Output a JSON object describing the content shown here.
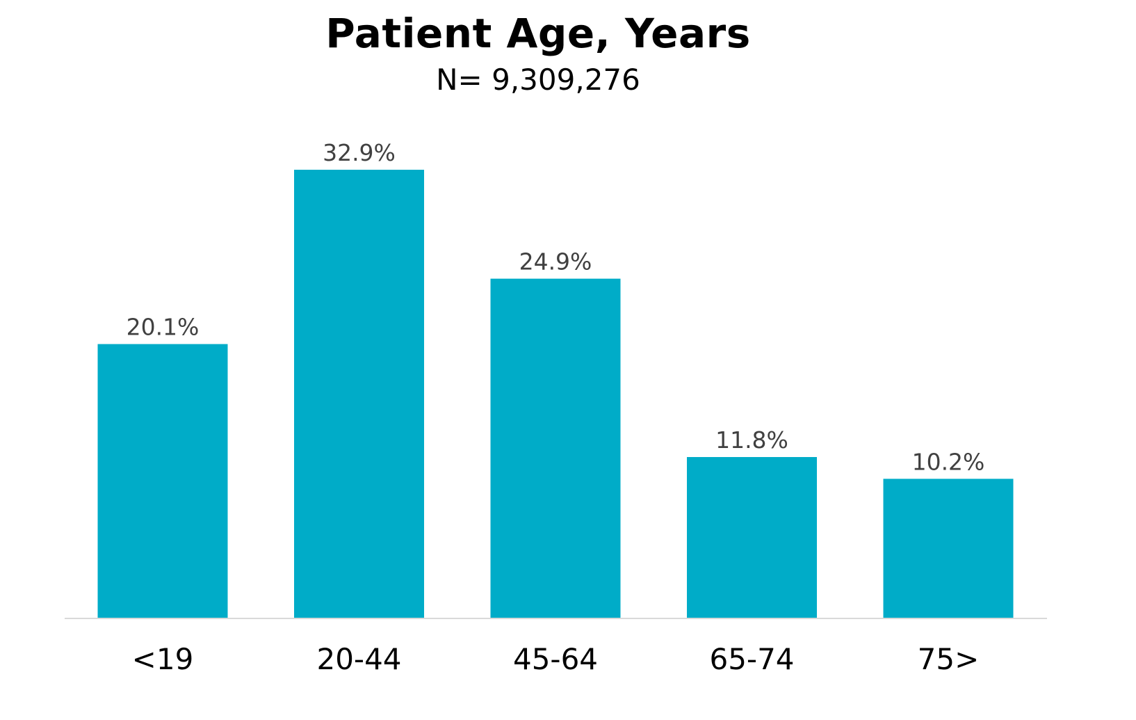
{
  "chart_data": {
    "type": "bar",
    "title": "Patient Age, Years",
    "subtitle": "N= 9,309,276",
    "xlabel": "",
    "ylabel": "",
    "categories": [
      "<19",
      "20-44",
      "45-64",
      "65-74",
      "75>"
    ],
    "values": [
      20.1,
      32.9,
      24.9,
      11.8,
      10.2
    ],
    "value_labels": [
      "20.1%",
      "32.9%",
      "24.9%",
      "11.8%",
      "10.2%"
    ],
    "ylim": [
      0,
      32.9
    ],
    "grid": false,
    "legend": "none",
    "bar_color": "#00ACC8",
    "axis_color": "#D9D9D9"
  }
}
